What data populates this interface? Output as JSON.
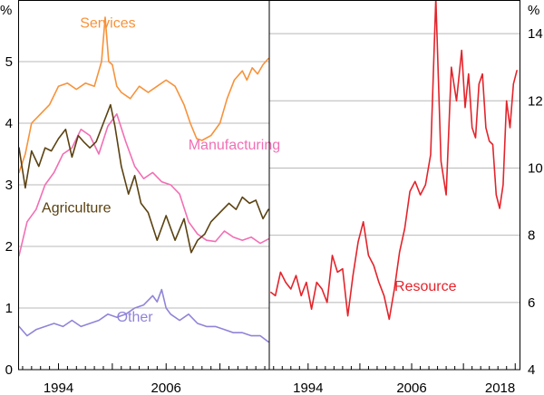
{
  "chart_data": [
    {
      "type": "line",
      "panel": "left",
      "unit_label": "%",
      "ylim": [
        0,
        6
      ],
      "yticks": [
        0,
        1,
        2,
        3,
        4,
        5
      ],
      "xlim": [
        1989.5,
        2017.5
      ],
      "xticks": [
        1994,
        2006
      ],
      "gridlines": true,
      "series": [
        {
          "name": "Services",
          "color": "#f7923a",
          "label_at": [
            1999.5,
            5.55
          ],
          "x": [
            1989.6,
            1990.3,
            1991.0,
            1992.0,
            1993.0,
            1994.0,
            1995.0,
            1996.0,
            1997.0,
            1998.0,
            1998.8,
            1999.2,
            1999.6,
            2000.0,
            2000.5,
            2001.0,
            2002.0,
            2003.0,
            2004.0,
            2005.0,
            2006.0,
            2007.0,
            2008.0,
            2008.7,
            2009.4,
            2010.0,
            2011.0,
            2012.0,
            2012.8,
            2013.6,
            2014.5,
            2015.0,
            2015.6,
            2016.2,
            2016.8,
            2017.4
          ],
          "y": [
            3.2,
            3.5,
            4.0,
            4.15,
            4.3,
            4.6,
            4.65,
            4.55,
            4.65,
            4.6,
            5.0,
            5.72,
            5.0,
            4.95,
            4.6,
            4.5,
            4.4,
            4.6,
            4.5,
            4.6,
            4.7,
            4.6,
            4.3,
            4.0,
            3.75,
            3.72,
            3.8,
            4.0,
            4.4,
            4.7,
            4.85,
            4.7,
            4.9,
            4.8,
            4.95,
            5.05
          ]
        },
        {
          "name": "Manufacturing",
          "color": "#f26fb4",
          "label_at": [
            2013.6,
            3.57
          ],
          "x": [
            1989.6,
            1990.5,
            1991.5,
            1992.5,
            1993.5,
            1994.5,
            1995.5,
            1996.5,
            1997.5,
            1998.5,
            1999.5,
            2000.5,
            2001.5,
            2002.5,
            2003.5,
            2004.5,
            2005.5,
            2006.5,
            2007.5,
            2008.5,
            2009.5,
            2010.5,
            2011.5,
            2012.5,
            2013.5,
            2014.5,
            2015.5,
            2016.5,
            2017.4
          ],
          "y": [
            1.85,
            2.4,
            2.6,
            3.0,
            3.2,
            3.5,
            3.6,
            3.9,
            3.8,
            3.5,
            3.95,
            4.15,
            3.7,
            3.3,
            3.1,
            3.2,
            3.05,
            3.0,
            2.85,
            2.4,
            2.2,
            2.1,
            2.08,
            2.25,
            2.15,
            2.1,
            2.15,
            2.05,
            2.12
          ]
        },
        {
          "name": "Agriculture",
          "color": "#5b4211",
          "label_at": [
            1996,
            2.55
          ],
          "x": [
            1989.6,
            1990.3,
            1991.0,
            1991.8,
            1992.5,
            1993.2,
            1994.0,
            1994.8,
            1995.5,
            1996.2,
            1996.8,
            1997.5,
            1998.2,
            1999.0,
            1999.8,
            2000.3,
            2001.0,
            2001.8,
            2002.5,
            2003.2,
            2004.0,
            2005.0,
            2006.0,
            2007.0,
            2008.0,
            2008.8,
            2009.5,
            2010.3,
            2011.0,
            2012.0,
            2013.0,
            2013.8,
            2014.5,
            2015.3,
            2016.0,
            2016.8,
            2017.4
          ],
          "y": [
            3.6,
            2.95,
            3.55,
            3.3,
            3.6,
            3.55,
            3.75,
            3.9,
            3.45,
            3.8,
            3.7,
            3.6,
            3.7,
            4.0,
            4.3,
            3.95,
            3.3,
            2.85,
            3.15,
            2.7,
            2.55,
            2.1,
            2.5,
            2.1,
            2.45,
            1.9,
            2.1,
            2.2,
            2.4,
            2.55,
            2.7,
            2.6,
            2.8,
            2.7,
            2.75,
            2.45,
            2.6
          ]
        },
        {
          "name": "Other",
          "color": "#8f84d8",
          "label_at": [
            2002.5,
            0.78
          ],
          "x": [
            1989.6,
            1990.5,
            1991.5,
            1992.5,
            1993.5,
            1994.5,
            1995.5,
            1996.5,
            1997.5,
            1998.5,
            1999.5,
            2000.5,
            2001.5,
            2002.5,
            2003.5,
            2004.5,
            2005.0,
            2005.5,
            2006.0,
            2006.5,
            2007.5,
            2008.5,
            2009.5,
            2010.5,
            2011.5,
            2012.5,
            2013.5,
            2014.5,
            2015.5,
            2016.5,
            2017.4
          ],
          "y": [
            0.7,
            0.55,
            0.65,
            0.7,
            0.75,
            0.7,
            0.8,
            0.7,
            0.75,
            0.8,
            0.9,
            0.85,
            0.9,
            1.0,
            1.05,
            1.2,
            1.1,
            1.3,
            1.0,
            0.9,
            0.8,
            0.9,
            0.75,
            0.7,
            0.7,
            0.65,
            0.6,
            0.6,
            0.55,
            0.55,
            0.45
          ]
        }
      ]
    },
    {
      "type": "line",
      "panel": "right",
      "unit_label": "%",
      "ylim": [
        4,
        15
      ],
      "yticks": [
        4,
        6,
        8,
        10,
        12,
        14
      ],
      "xlim": [
        1989.5,
        2018.5
      ],
      "xticks": [
        1994,
        2006,
        2018
      ],
      "gridlines": true,
      "series": [
        {
          "name": "Resource",
          "color": "#e3242b",
          "label_at": [
            2007.6,
            6.35
          ],
          "x": [
            1989.7,
            1990.2,
            1990.8,
            1991.4,
            1992.0,
            1992.6,
            1993.2,
            1993.8,
            1994.4,
            1995.0,
            1995.6,
            1996.2,
            1996.8,
            1997.4,
            1998.0,
            1998.6,
            1999.2,
            1999.8,
            2000.4,
            2001.0,
            2001.6,
            2002.2,
            2002.8,
            2003.4,
            2004.0,
            2004.6,
            2005.2,
            2005.8,
            2006.4,
            2007.0,
            2007.6,
            2008.2,
            2008.8,
            2009.4,
            2010.0,
            2010.6,
            2011.2,
            2011.8,
            2012.2,
            2012.6,
            2013.0,
            2013.4,
            2013.8,
            2014.2,
            2014.6,
            2015.0,
            2015.4,
            2015.8,
            2016.2,
            2016.6,
            2017.0,
            2017.4,
            2017.8,
            2018.2
          ],
          "y": [
            6.3,
            6.2,
            6.9,
            6.6,
            6.4,
            6.8,
            6.2,
            6.6,
            5.8,
            6.6,
            6.4,
            6.0,
            7.4,
            6.9,
            7.0,
            5.6,
            6.8,
            7.8,
            8.4,
            7.4,
            7.1,
            6.6,
            6.2,
            5.5,
            6.4,
            7.5,
            8.2,
            9.3,
            9.6,
            9.2,
            9.5,
            10.4,
            15.05,
            10.2,
            9.2,
            13.0,
            12.0,
            13.5,
            11.8,
            12.8,
            11.2,
            10.9,
            12.5,
            12.8,
            11.2,
            10.8,
            10.7,
            9.2,
            8.8,
            9.5,
            12.0,
            11.2,
            12.5,
            12.9
          ]
        }
      ]
    }
  ]
}
